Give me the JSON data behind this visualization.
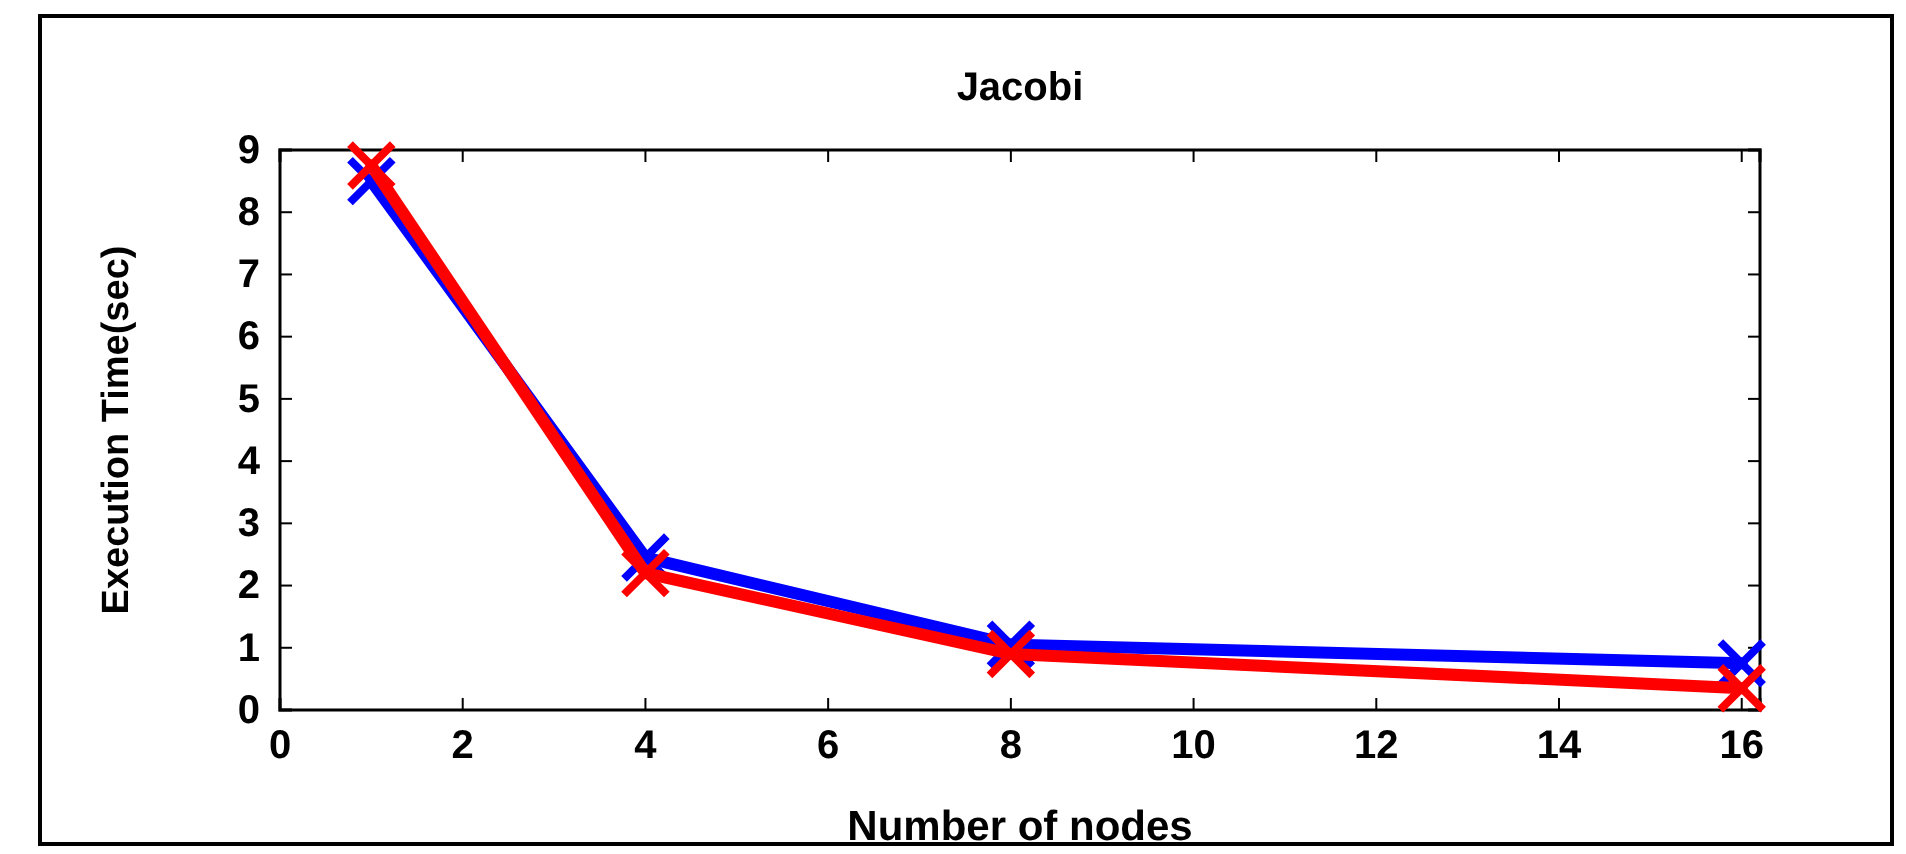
{
  "chart_data": {
    "type": "line",
    "title": "Jacobi",
    "xlabel": "Number of nodes",
    "ylabel": "Execution Time(sec)",
    "xlim": [
      0,
      16.2
    ],
    "xticks": [
      0,
      2,
      4,
      6,
      8,
      10,
      12,
      14,
      16
    ],
    "ylim": [
      0,
      9
    ],
    "yticks": [
      0,
      1,
      2,
      3,
      4,
      5,
      6,
      7,
      8,
      9
    ],
    "grid": false,
    "marker": "cross",
    "line_style": "solid",
    "series": [
      {
        "color": "#0000ff",
        "x": [
          1,
          4,
          8,
          16
        ],
        "values": [
          8.5,
          2.45,
          1.05,
          0.75
        ]
      },
      {
        "color": "#ff0000",
        "x": [
          1,
          4,
          8,
          16
        ],
        "values": [
          8.75,
          2.2,
          0.9,
          0.35
        ]
      }
    ]
  }
}
